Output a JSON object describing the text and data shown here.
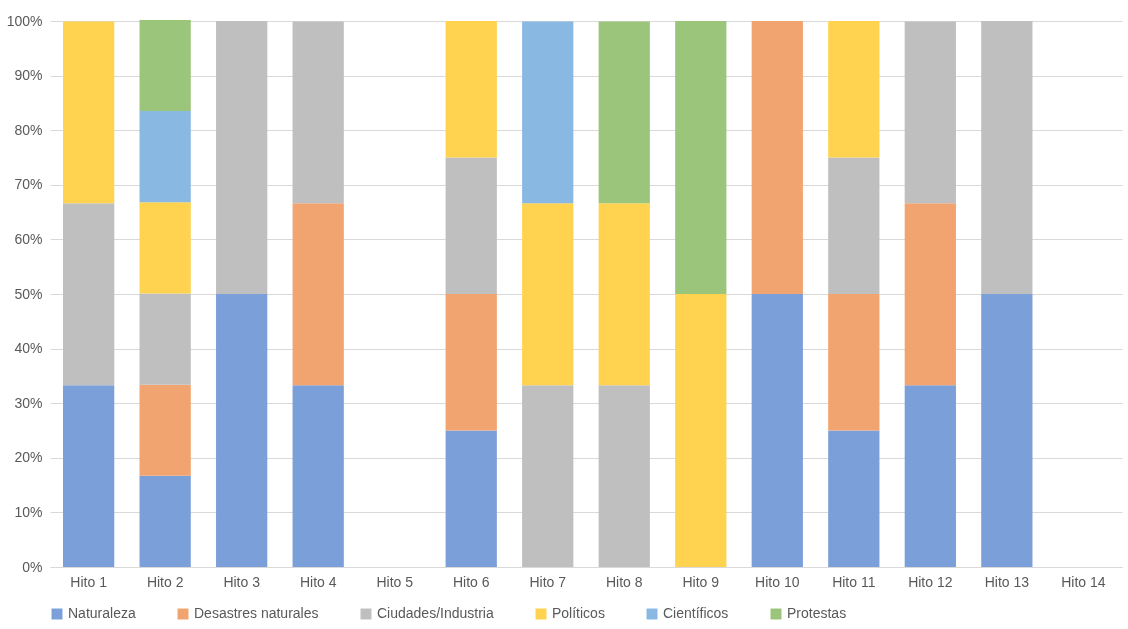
{
  "chart_data": {
    "type": "bar",
    "stacked": true,
    "categories": [
      "Hito 1",
      "Hito 2",
      "Hito 3",
      "Hito 4",
      "Hito 5",
      "Hito 6",
      "Hito 7",
      "Hito 8",
      "Hito 9",
      "Hito 10",
      "Hito 11",
      "Hito 12",
      "Hito 13",
      "Hito 14"
    ],
    "series": [
      {
        "name": "Naturaleza",
        "color": "#7b9fd9",
        "values": [
          33.3,
          16.7,
          50,
          33.3,
          0,
          25,
          0,
          0,
          0,
          50,
          25,
          33.3,
          50,
          0
        ]
      },
      {
        "name": "Desastres naturales",
        "color": "#f1a46f",
        "values": [
          0,
          16.7,
          0,
          33.3,
          0,
          25,
          0,
          0,
          0,
          50,
          25,
          33.3,
          0,
          0
        ]
      },
      {
        "name": "Ciudades/Industria",
        "color": "#bfbfbf",
        "values": [
          33.3,
          16.7,
          50,
          33.3,
          0,
          25,
          33.3,
          33.3,
          0,
          0,
          25,
          33.3,
          50,
          0
        ]
      },
      {
        "name": "Políticos",
        "color": "#ffd34f",
        "values": [
          33.3,
          16.7,
          0,
          0,
          0,
          25,
          33.3,
          33.3,
          50,
          0,
          25,
          0,
          0,
          0
        ]
      },
      {
        "name": "Científicos",
        "color": "#89b8e3",
        "values": [
          0,
          16.7,
          0,
          0,
          0,
          0,
          33.3,
          0,
          0,
          0,
          0,
          0,
          0,
          0
        ]
      },
      {
        "name": "Protestas",
        "color": "#9cc57c",
        "values": [
          0,
          16.7,
          0,
          0,
          0,
          0,
          0,
          33.3,
          50,
          0,
          0,
          0,
          0,
          0
        ]
      }
    ],
    "ylim": [
      0,
      100
    ],
    "yticks": [
      {
        "value": 0,
        "label": "0%"
      },
      {
        "value": 10,
        "label": "10%"
      },
      {
        "value": 20,
        "label": "20%"
      },
      {
        "value": 30,
        "label": "30%"
      },
      {
        "value": 40,
        "label": "40%"
      },
      {
        "value": 50,
        "label": "50%"
      },
      {
        "value": 60,
        "label": "60%"
      },
      {
        "value": 70,
        "label": "70%"
      },
      {
        "value": 80,
        "label": "80%"
      },
      {
        "value": 90,
        "label": "90%"
      },
      {
        "value": 100,
        "label": "100%"
      }
    ],
    "grid": "y",
    "legend": "bottom"
  }
}
